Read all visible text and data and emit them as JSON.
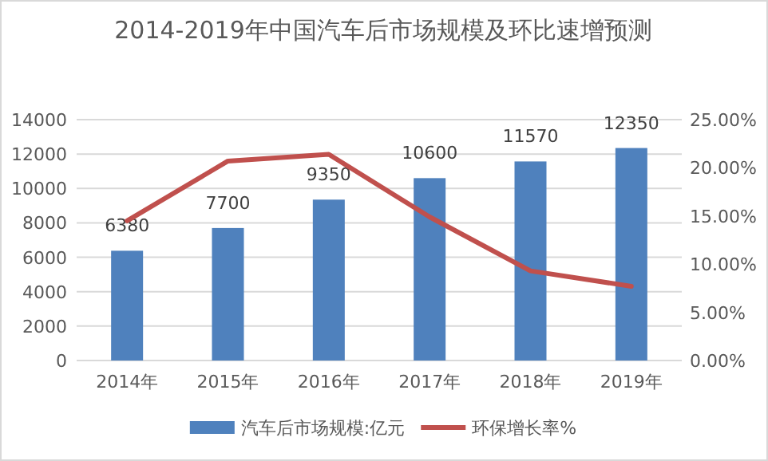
{
  "chart_data": {
    "type": "bar",
    "title": "2014-2019年中国汽车后市场规模及环比速增预测",
    "categories": [
      "2014年",
      "2015年",
      "2016年",
      "2017年",
      "2018年",
      "2019年"
    ],
    "series": [
      {
        "name": "汽车后市场规模:亿元",
        "color": "#4f81bd",
        "values": [
          6380,
          7700,
          9350,
          10600,
          11570,
          12350
        ],
        "value_labels": [
          "6380",
          "7700",
          "9350",
          "10600",
          "11570",
          "12350"
        ]
      },
      {
        "name": "环保增长率%",
        "type": "line",
        "axis": "y2",
        "color": "#c0504d",
        "values": [
          14.5,
          20.7,
          21.4,
          14.9,
          9.3,
          7.7
        ]
      }
    ],
    "ylim": [
      0,
      14000
    ],
    "yticks": [
      0,
      2000,
      4000,
      6000,
      8000,
      10000,
      12000,
      14000
    ],
    "y2lim": [
      0,
      25
    ],
    "y2ticks": [
      {
        "value": 0,
        "label": "0.00%"
      },
      {
        "value": 5,
        "label": "5.00%"
      },
      {
        "value": 10,
        "label": "10.00%"
      },
      {
        "value": 15,
        "label": "15.00%"
      },
      {
        "value": 20,
        "label": "20.00%"
      },
      {
        "value": 25,
        "label": "25.00%"
      }
    ],
    "grid": "y",
    "legend": "bottom"
  }
}
